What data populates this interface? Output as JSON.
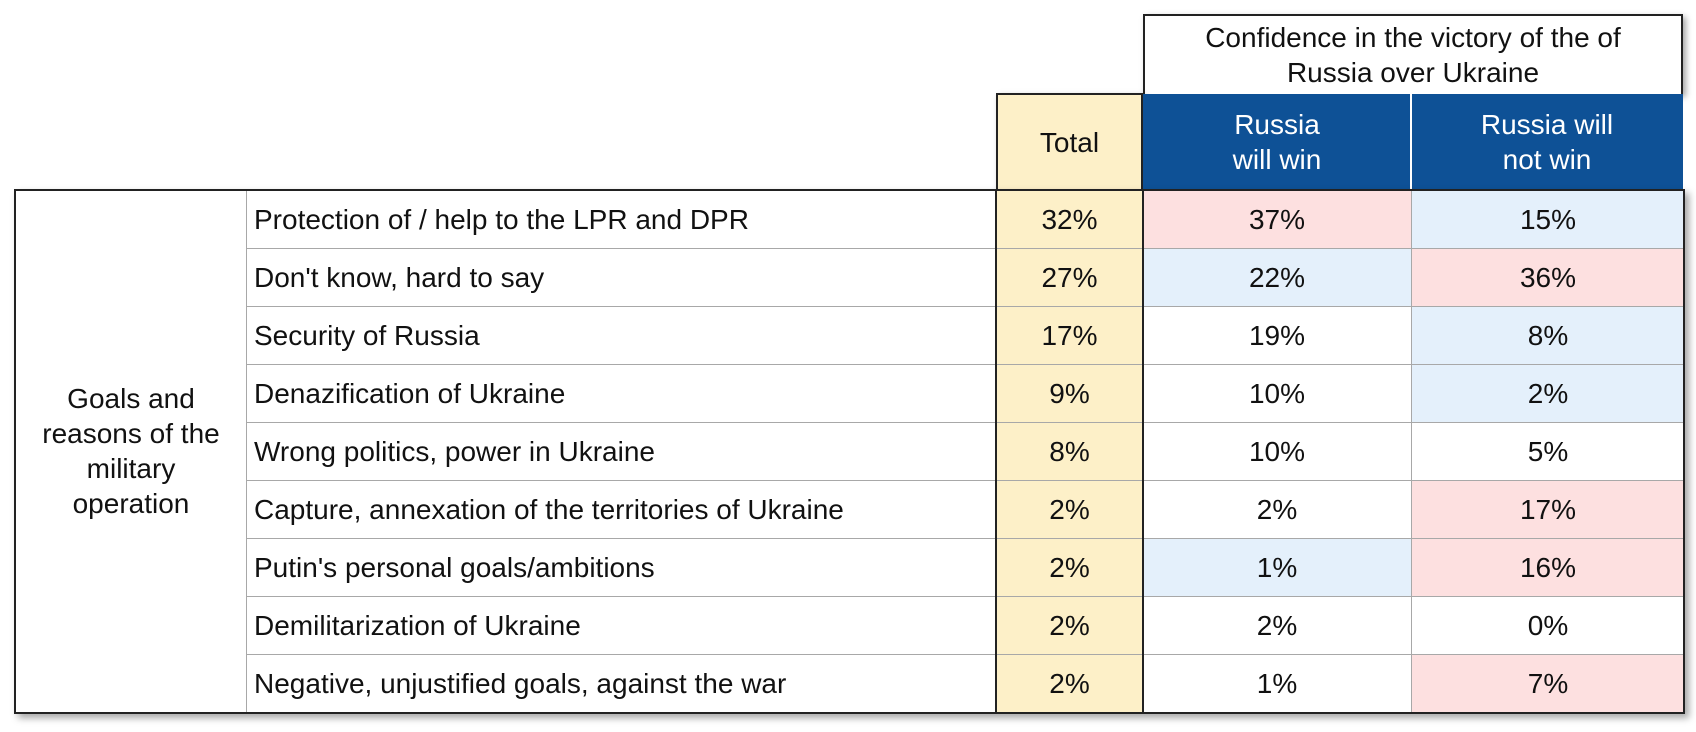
{
  "chart_data": {
    "type": "table",
    "group_header": "Confidence in the victory of the of Russia over Ukraine",
    "columns": [
      "Total",
      "Russia will win",
      "Russia will not win"
    ],
    "row_group_label": "Goals and reasons of the military operation",
    "rows": [
      {
        "label": "Protection of / help to the LPR and DPR",
        "values": [
          "32%",
          "37%",
          "15%"
        ],
        "highlight": [
          "total",
          "high",
          "low"
        ]
      },
      {
        "label": "Don't know, hard to say",
        "values": [
          "27%",
          "22%",
          "36%"
        ],
        "highlight": [
          "total",
          "low",
          "high"
        ]
      },
      {
        "label": "Security of Russia",
        "values": [
          "17%",
          "19%",
          "8%"
        ],
        "highlight": [
          "total",
          "none",
          "low"
        ]
      },
      {
        "label": "Denazification of Ukraine",
        "values": [
          "9%",
          "10%",
          "2%"
        ],
        "highlight": [
          "total",
          "none",
          "low"
        ]
      },
      {
        "label": "Wrong politics, power in Ukraine",
        "values": [
          "8%",
          "10%",
          "5%"
        ],
        "highlight": [
          "total",
          "none",
          "none"
        ]
      },
      {
        "label": "Capture, annexation of the territories of Ukraine",
        "values": [
          "2%",
          "2%",
          "17%"
        ],
        "highlight": [
          "total",
          "none",
          "high"
        ]
      },
      {
        "label": "Putin's personal goals/ambitions",
        "values": [
          "2%",
          "1%",
          "16%"
        ],
        "highlight": [
          "total",
          "low",
          "high"
        ]
      },
      {
        "label": "Demilitarization of Ukraine",
        "values": [
          "2%",
          "2%",
          "0%"
        ],
        "highlight": [
          "total",
          "none",
          "none"
        ]
      },
      {
        "label": "Negative, unjustified goals, against the war",
        "values": [
          "2%",
          "1%",
          "7%"
        ],
        "highlight": [
          "total",
          "none",
          "high"
        ]
      }
    ]
  },
  "colors": {
    "header_blue": "#0e5196",
    "total_fill": "#fdf0c8",
    "high_fill": "#fde0e0",
    "low_fill": "#e4f0fb",
    "none_fill": "#ffffff"
  }
}
